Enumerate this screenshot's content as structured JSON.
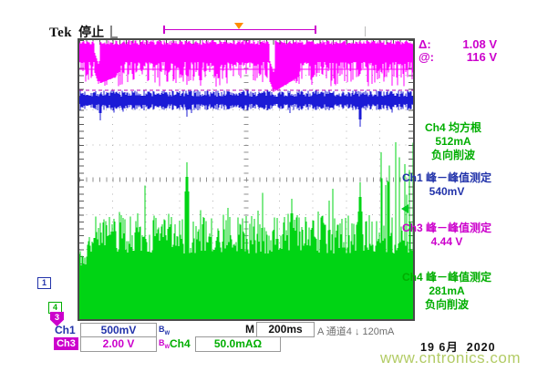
{
  "header": {
    "brand": "Tek",
    "status": "停止"
  },
  "cursor_readout": {
    "rows": [
      {
        "label": "Δ:",
        "value": "1.08 V"
      },
      {
        "label": "@:",
        "value": "116 V"
      }
    ]
  },
  "measurements": {
    "rms": {
      "channel": "Ch4",
      "name": "均方根",
      "value": "512mA",
      "note": "负向削波"
    },
    "pk1": {
      "channel": "Ch1",
      "name": "峰－峰值测定",
      "value": "540mV"
    },
    "pk3": {
      "channel": "Ch3",
      "name": "峰－峰值测定",
      "value": "4.44 V"
    },
    "pk4": {
      "channel": "Ch4",
      "name": "峰－峰值测定",
      "value": "281mA",
      "note": "负向削波"
    }
  },
  "channel_markers": {
    "ch1": "1",
    "ch3": "3",
    "ch4": "4"
  },
  "status_bar": {
    "ch1_label": "Ch1",
    "ch1_scale": "500mV",
    "ch3_label": "Ch3",
    "ch3_scale": "2.00 V",
    "ch4_label": "Ch4",
    "ch4_scale": "50.0mAΩ",
    "bw_b": "B",
    "bw_w": "W",
    "timebase_label": "M",
    "timebase_value": "200ms",
    "trigger_readout": "A 通道4 ↓ 120mA"
  },
  "footer": {
    "date": "19 6月  2020",
    "watermark": "www.cntronics.com"
  },
  "colors": {
    "ch1_trace": "#1b1bd6",
    "ch3_trace": "#ff00ff",
    "ch4_trace": "#00d414",
    "ch1_text": "#2233aa",
    "ch3_text": "#cc00cc",
    "ch4_text": "#00ae00",
    "trigger_orange": "#ff8c00",
    "grid": "#b4b4b4",
    "grid_center": "#8f8f8f",
    "edge_ticks": "#5a5a5a",
    "cursor_solid": "#ff00ff",
    "cursor_dashed": "#b000b0"
  }
}
